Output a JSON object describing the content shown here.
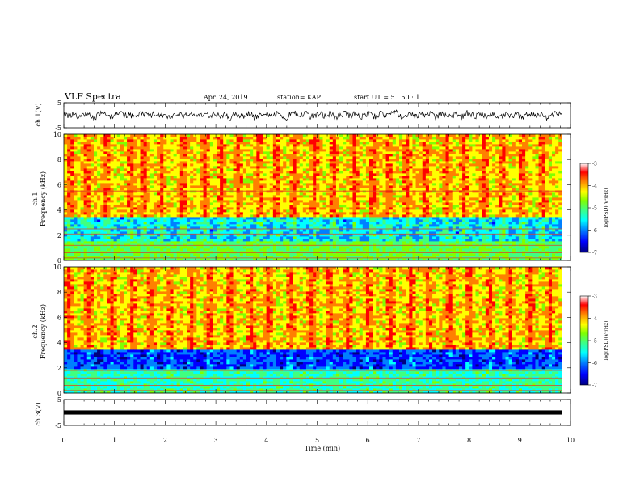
{
  "header": {
    "title": "VLF Spectra",
    "date": "Apr. 24, 2019",
    "station": "station= KAP",
    "start": "start UT =  5 : 50 : 1"
  },
  "chart_data": [
    {
      "type": "line",
      "panel": "ch1-waveform",
      "ylabel": "ch.1(V)",
      "ylim": [
        -5,
        5
      ],
      "yticks": [
        "5",
        "-5"
      ],
      "x_range_min": [
        0,
        9.83
      ],
      "series": [
        {
          "values": [
            0.6,
            -0.2,
            0.9,
            -0.8,
            0.3,
            1.0,
            -1.2,
            0.4,
            0.7,
            -0.9,
            0.2,
            1.1,
            -0.5,
            0.6,
            -1.0,
            0.8,
            0.1,
            -0.6,
            0.9,
            -0.3,
            0.5,
            -1.1,
            0.7,
            0.2,
            -0.4,
            1.0,
            -0.8,
            0.3,
            0.6,
            -0.7,
            0.9,
            -0.2,
            0.4,
            -1.0,
            0.8,
            0.0,
            -0.5,
            0.7,
            -0.9,
            0.5,
            1.0,
            -0.6,
            0.2,
            0.8,
            -1.2,
            0.4,
            0.6,
            -0.3,
            0.9,
            -0.8,
            0.1,
            0.7,
            -0.5,
            1.0,
            -0.9,
            0.3,
            0.5,
            -0.2,
            0.8,
            -1.0,
            0.6,
            0.2,
            -0.7,
            0.9,
            -0.4,
            0.5,
            1.1,
            -0.8,
            0.3,
            0.7,
            -0.6,
            0.9,
            -0.1,
            0.4,
            -1.0,
            0.8,
            0.2,
            -0.5,
            0.6,
            -0.9,
            1.0,
            0.3,
            -0.4,
            0.7,
            -0.8,
            0.5,
            0.1,
            -0.6,
            0.9,
            -0.3,
            0.6,
            -1.1,
            0.8,
            0.2,
            -0.5,
            0.7,
            -0.9,
            0.4,
            1.0,
            -0.2
          ]
        }
      ]
    },
    {
      "type": "heatmap",
      "panel": "ch1-spectrogram",
      "ylabel_line1": "ch.1",
      "ylabel_line2": "Frequency  (kHz)",
      "ylim": [
        0,
        10
      ],
      "yticks": [
        "0",
        "2",
        "4",
        "6",
        "8",
        "10"
      ],
      "x_range_min": [
        0,
        9.83
      ],
      "description_levels": {
        "above_3_5kHz": "log PSD mostly -4.5 to -3",
        "1_5_to_3_5kHz": "log PSD about -6.5 to -5",
        "below_1_5kHz": "log PSD about -5 to -4.5"
      },
      "bursts_min": [
        0.12,
        0.45,
        0.85,
        1.33,
        1.58,
        1.92,
        2.35,
        2.78,
        3.1,
        3.45,
        3.86,
        4.2,
        4.55,
        4.95,
        5.33,
        5.75,
        6.1,
        6.42,
        6.78,
        7.15,
        7.55,
        7.9,
        8.3,
        8.65,
        9.05,
        9.45
      ],
      "line_freqs_khz": [
        5.5,
        2.5,
        2.1,
        1.2,
        0.6,
        0.2
      ]
    },
    {
      "type": "heatmap",
      "panel": "ch2-spectrogram",
      "ylabel_line1": "ch.2",
      "ylabel_line2": "Frequency  (kHz)",
      "ylim": [
        0,
        10
      ],
      "yticks": [
        "0",
        "2",
        "4",
        "6",
        "8",
        "10"
      ],
      "x_range_min": [
        0,
        9.83
      ],
      "description_levels": {
        "above_3_5kHz": "log PSD mostly -4.5 to -3",
        "2_to_3_5kHz": "log PSD about -7 to -6",
        "below_2kHz": "log PSD about -5.5 to -4.5"
      },
      "bursts_min": [
        0.1,
        0.5,
        0.95,
        1.35,
        1.72,
        2.1,
        2.52,
        2.9,
        3.28,
        3.7,
        4.05,
        4.48,
        4.88,
        5.25,
        5.62,
        6.02,
        6.45,
        6.85,
        7.2,
        7.62,
        8.0,
        8.42,
        8.8,
        9.2,
        9.6
      ],
      "line_freqs_khz": [
        1.8,
        1.2,
        0.6,
        0.2
      ]
    },
    {
      "type": "line",
      "panel": "ch3-waveform",
      "ylabel": "ch.3(V)",
      "ylim": [
        -5,
        5
      ],
      "yticks": [
        "5",
        "-5"
      ],
      "x_range_min": [
        0,
        9.83
      ],
      "series": [
        {
          "values": [
            0,
            0
          ]
        }
      ]
    }
  ],
  "xaxis": {
    "label": "Time  (min)",
    "ticks": [
      "0",
      "1",
      "2",
      "3",
      "4",
      "5",
      "6",
      "7",
      "8",
      "9",
      "10"
    ],
    "range": [
      0,
      10
    ]
  },
  "colorbars": [
    {
      "label": "log(PSD)(V²/Hz)",
      "ticks": [
        "-3",
        "-4",
        "-5",
        "-6",
        "-7"
      ],
      "range": [
        -7,
        -3
      ]
    },
    {
      "label": "log(PSD)(V²/Hz)",
      "ticks": [
        "-3",
        "-4",
        "-5",
        "-6",
        "-7"
      ],
      "range": [
        -7,
        -3
      ]
    }
  ],
  "colors": {
    "colormap": [
      "#00007f",
      "#0000ff",
      "#0080ff",
      "#00ffff",
      "#40ff80",
      "#80ff00",
      "#ffff00",
      "#ff8000",
      "#ff0000",
      "#ffffff"
    ],
    "line": "#000000"
  }
}
